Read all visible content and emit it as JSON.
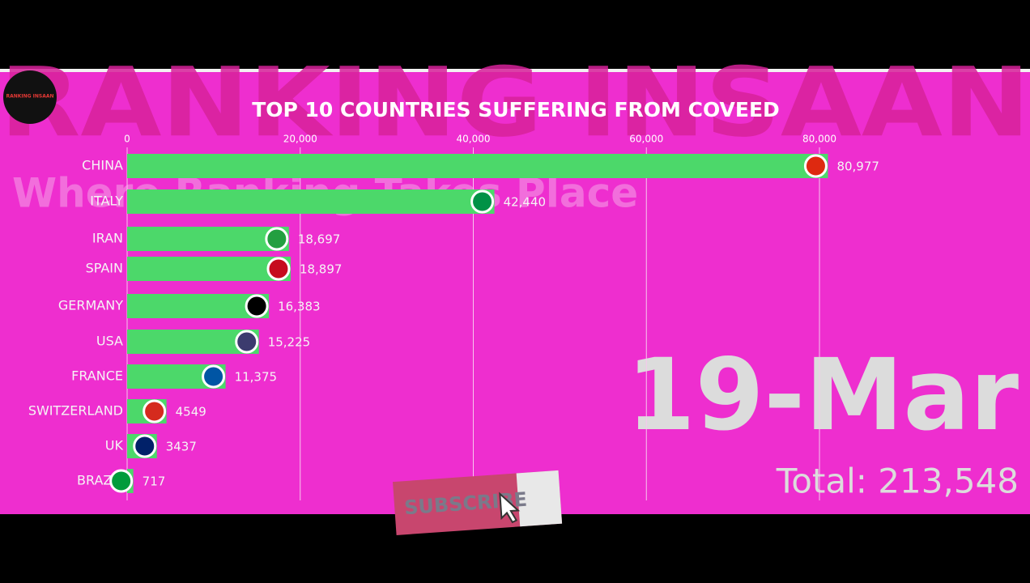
{
  "chart_data": {
    "type": "bar",
    "orientation": "horizontal",
    "title": "TOP 10 COUNTRIES SUFFERING FROM COVEED",
    "watermark": "RANKING INSAAN",
    "tagline": "Where Ranking Takes Place",
    "logo_text": "RANKING INSAAN",
    "date_label": "19-Mar",
    "total_label": "Total: 213,548",
    "button_label": "SUBSCRIBE",
    "categories": [
      "CHINA",
      "ITALY",
      "IRAN",
      "SPAIN",
      "GERMANY",
      "USA",
      "FRANCE",
      "SWITZERLAND",
      "UK",
      "BRAZIL"
    ],
    "values": [
      80977,
      42440,
      18697,
      18897,
      16383,
      15225,
      11375,
      4549,
      3437,
      717
    ],
    "value_labels": [
      "80,977",
      "42,440",
      "18,697",
      "18,897",
      "16,383",
      "15,225",
      "11,375",
      "4549",
      "3437",
      "717"
    ],
    "color": "#4cd86a",
    "xlim": [
      0,
      80000
    ],
    "xticks": [
      0,
      {
        "value": 20000,
        "label": "20,000"
      },
      {
        "value": 40000,
        "label": "40,000"
      },
      {
        "value": 60000,
        "label": "60,000"
      },
      {
        "value": 80000,
        "label": "80,000"
      }
    ],
    "grid": true
  }
}
